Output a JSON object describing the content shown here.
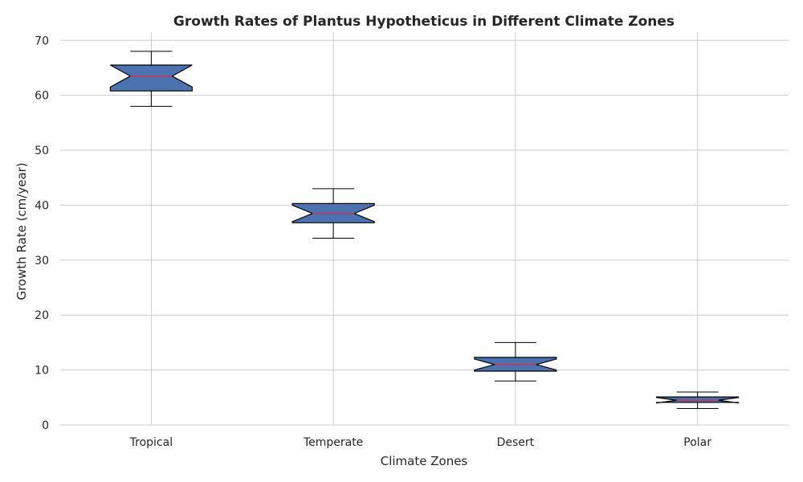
{
  "chart_data": {
    "type": "box",
    "title": "Growth Rates of Plantus Hypotheticus in Different Climate Zones",
    "xlabel": "Climate Zones",
    "ylabel": "Growth Rate (cm/year)",
    "ylim": [
      0,
      71.5
    ],
    "yticks": [
      0,
      10,
      20,
      30,
      40,
      50,
      60,
      70
    ],
    "grid": true,
    "notched": true,
    "box_color": "#4c72b0",
    "median_color": "#e8243c",
    "categories": [
      "Tropical",
      "Temperate",
      "Desert",
      "Polar"
    ],
    "boxes": [
      {
        "category": "Tropical",
        "whisker_low": 58,
        "q1": 60.8,
        "median": 63.5,
        "q3": 65.5,
        "whisker_high": 68,
        "notch_low": 61.5,
        "notch_high": 65.5
      },
      {
        "category": "Temperate",
        "whisker_low": 34,
        "q1": 36.8,
        "median": 38.5,
        "q3": 40.3,
        "whisker_high": 43,
        "notch_low": 37.0,
        "notch_high": 40.0
      },
      {
        "category": "Desert",
        "whisker_low": 8,
        "q1": 9.8,
        "median": 11,
        "q3": 12.3,
        "whisker_high": 15,
        "notch_low": 10.0,
        "notch_high": 12.0
      },
      {
        "category": "Polar",
        "whisker_low": 3,
        "q1": 4.1,
        "median": 4.5,
        "q3": 5.1,
        "whisker_high": 6,
        "notch_low": 4.0,
        "notch_high": 5.0
      }
    ]
  }
}
